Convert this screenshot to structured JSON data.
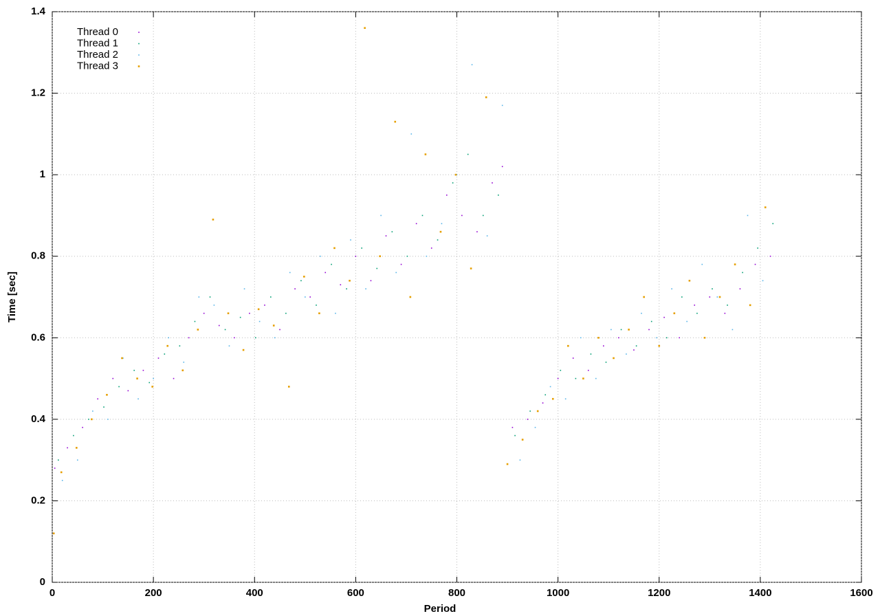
{
  "chart_data": {
    "type": "scatter",
    "xlabel": "Period",
    "ylabel": "Time [sec]",
    "xlim": [
      0,
      1600
    ],
    "xticks": [
      0,
      200,
      400,
      600,
      800,
      1000,
      1200,
      1400,
      1600
    ],
    "ylim": [
      0,
      1.4
    ],
    "yticks": [
      0,
      0.2,
      0.4,
      0.6,
      0.8,
      1,
      1.2,
      1.4
    ],
    "grid": true,
    "legend": "top-left",
    "series": [
      {
        "name": "Thread 0",
        "color": "#9400d3",
        "x": [
          5,
          30,
          60,
          90,
          120,
          150,
          180,
          210,
          240,
          270,
          300,
          330,
          360,
          390,
          420,
          450,
          480,
          510,
          540,
          570,
          600,
          630,
          660,
          690,
          720,
          750,
          780,
          810,
          840,
          870,
          890,
          910,
          940,
          970,
          1000,
          1030,
          1060,
          1090,
          1120,
          1150,
          1180,
          1210,
          1240,
          1270,
          1300,
          1330,
          1360,
          1390,
          1420
        ],
        "values": [
          0.28,
          0.33,
          0.38,
          0.45,
          0.5,
          0.47,
          0.52,
          0.55,
          0.5,
          0.6,
          0.66,
          0.63,
          0.6,
          0.66,
          0.68,
          0.62,
          0.72,
          0.7,
          0.76,
          0.73,
          0.8,
          0.74,
          0.85,
          0.78,
          0.88,
          0.82,
          0.95,
          0.9,
          0.86,
          0.98,
          1.02,
          0.38,
          0.4,
          0.44,
          0.5,
          0.55,
          0.52,
          0.58,
          0.6,
          0.57,
          0.62,
          0.65,
          0.6,
          0.68,
          0.7,
          0.66,
          0.72,
          0.78,
          0.8
        ]
      },
      {
        "name": "Thread 1",
        "color": "#009e73",
        "x": [
          12,
          42,
          72,
          102,
          132,
          162,
          192,
          222,
          252,
          282,
          312,
          342,
          372,
          402,
          432,
          462,
          492,
          522,
          552,
          582,
          612,
          642,
          672,
          702,
          732,
          762,
          792,
          822,
          852,
          882,
          915,
          945,
          975,
          1005,
          1035,
          1065,
          1095,
          1125,
          1155,
          1185,
          1215,
          1245,
          1275,
          1305,
          1335,
          1365,
          1395,
          1425
        ],
        "values": [
          0.3,
          0.36,
          0.4,
          0.43,
          0.48,
          0.52,
          0.49,
          0.56,
          0.58,
          0.64,
          0.7,
          0.62,
          0.65,
          0.6,
          0.7,
          0.66,
          0.74,
          0.68,
          0.78,
          0.72,
          0.82,
          0.77,
          0.86,
          0.8,
          0.9,
          0.84,
          0.98,
          1.05,
          0.9,
          0.95,
          0.36,
          0.42,
          0.46,
          0.52,
          0.5,
          0.56,
          0.54,
          0.62,
          0.58,
          0.64,
          0.6,
          0.7,
          0.66,
          0.72,
          0.68,
          0.76,
          0.82,
          0.88
        ]
      },
      {
        "name": "Thread 2",
        "color": "#56b4e9",
        "x": [
          20,
          50,
          80,
          110,
          140,
          170,
          200,
          230,
          260,
          290,
          320,
          350,
          380,
          410,
          440,
          470,
          500,
          530,
          560,
          590,
          620,
          650,
          680,
          710,
          740,
          770,
          800,
          830,
          860,
          890,
          925,
          955,
          985,
          1015,
          1045,
          1075,
          1105,
          1135,
          1165,
          1195,
          1225,
          1255,
          1285,
          1315,
          1345,
          1375,
          1405
        ],
        "values": [
          0.25,
          0.3,
          0.42,
          0.4,
          0.55,
          0.45,
          0.5,
          0.6,
          0.54,
          0.7,
          0.68,
          0.58,
          0.72,
          0.64,
          0.6,
          0.76,
          0.7,
          0.8,
          0.66,
          0.84,
          0.72,
          0.9,
          0.76,
          1.1,
          0.8,
          0.88,
          1.0,
          1.27,
          0.85,
          1.17,
          0.3,
          0.38,
          0.48,
          0.45,
          0.6,
          0.5,
          0.62,
          0.56,
          0.66,
          0.6,
          0.72,
          0.64,
          0.78,
          0.7,
          0.62,
          0.9,
          0.74
        ]
      },
      {
        "name": "Thread 3",
        "color": "#e69f00",
        "x": [
          3,
          18,
          48,
          78,
          108,
          138,
          168,
          198,
          228,
          258,
          288,
          318,
          348,
          378,
          408,
          438,
          468,
          498,
          528,
          558,
          588,
          618,
          648,
          678,
          708,
          738,
          768,
          798,
          828,
          858,
          900,
          930,
          960,
          990,
          1020,
          1050,
          1080,
          1110,
          1140,
          1170,
          1200,
          1230,
          1260,
          1290,
          1320,
          1350,
          1380,
          1410
        ],
        "values": [
          0.12,
          0.27,
          0.33,
          0.4,
          0.46,
          0.55,
          0.5,
          0.48,
          0.58,
          0.52,
          0.62,
          0.89,
          0.66,
          0.57,
          0.67,
          0.63,
          0.48,
          0.75,
          0.66,
          0.82,
          0.74,
          1.36,
          0.8,
          1.13,
          0.7,
          1.05,
          0.86,
          1.0,
          0.77,
          1.19,
          0.29,
          0.35,
          0.42,
          0.45,
          0.58,
          0.5,
          0.6,
          0.55,
          0.62,
          0.7,
          0.58,
          0.66,
          0.74,
          0.6,
          0.7,
          0.78,
          0.68,
          0.92
        ]
      }
    ]
  }
}
